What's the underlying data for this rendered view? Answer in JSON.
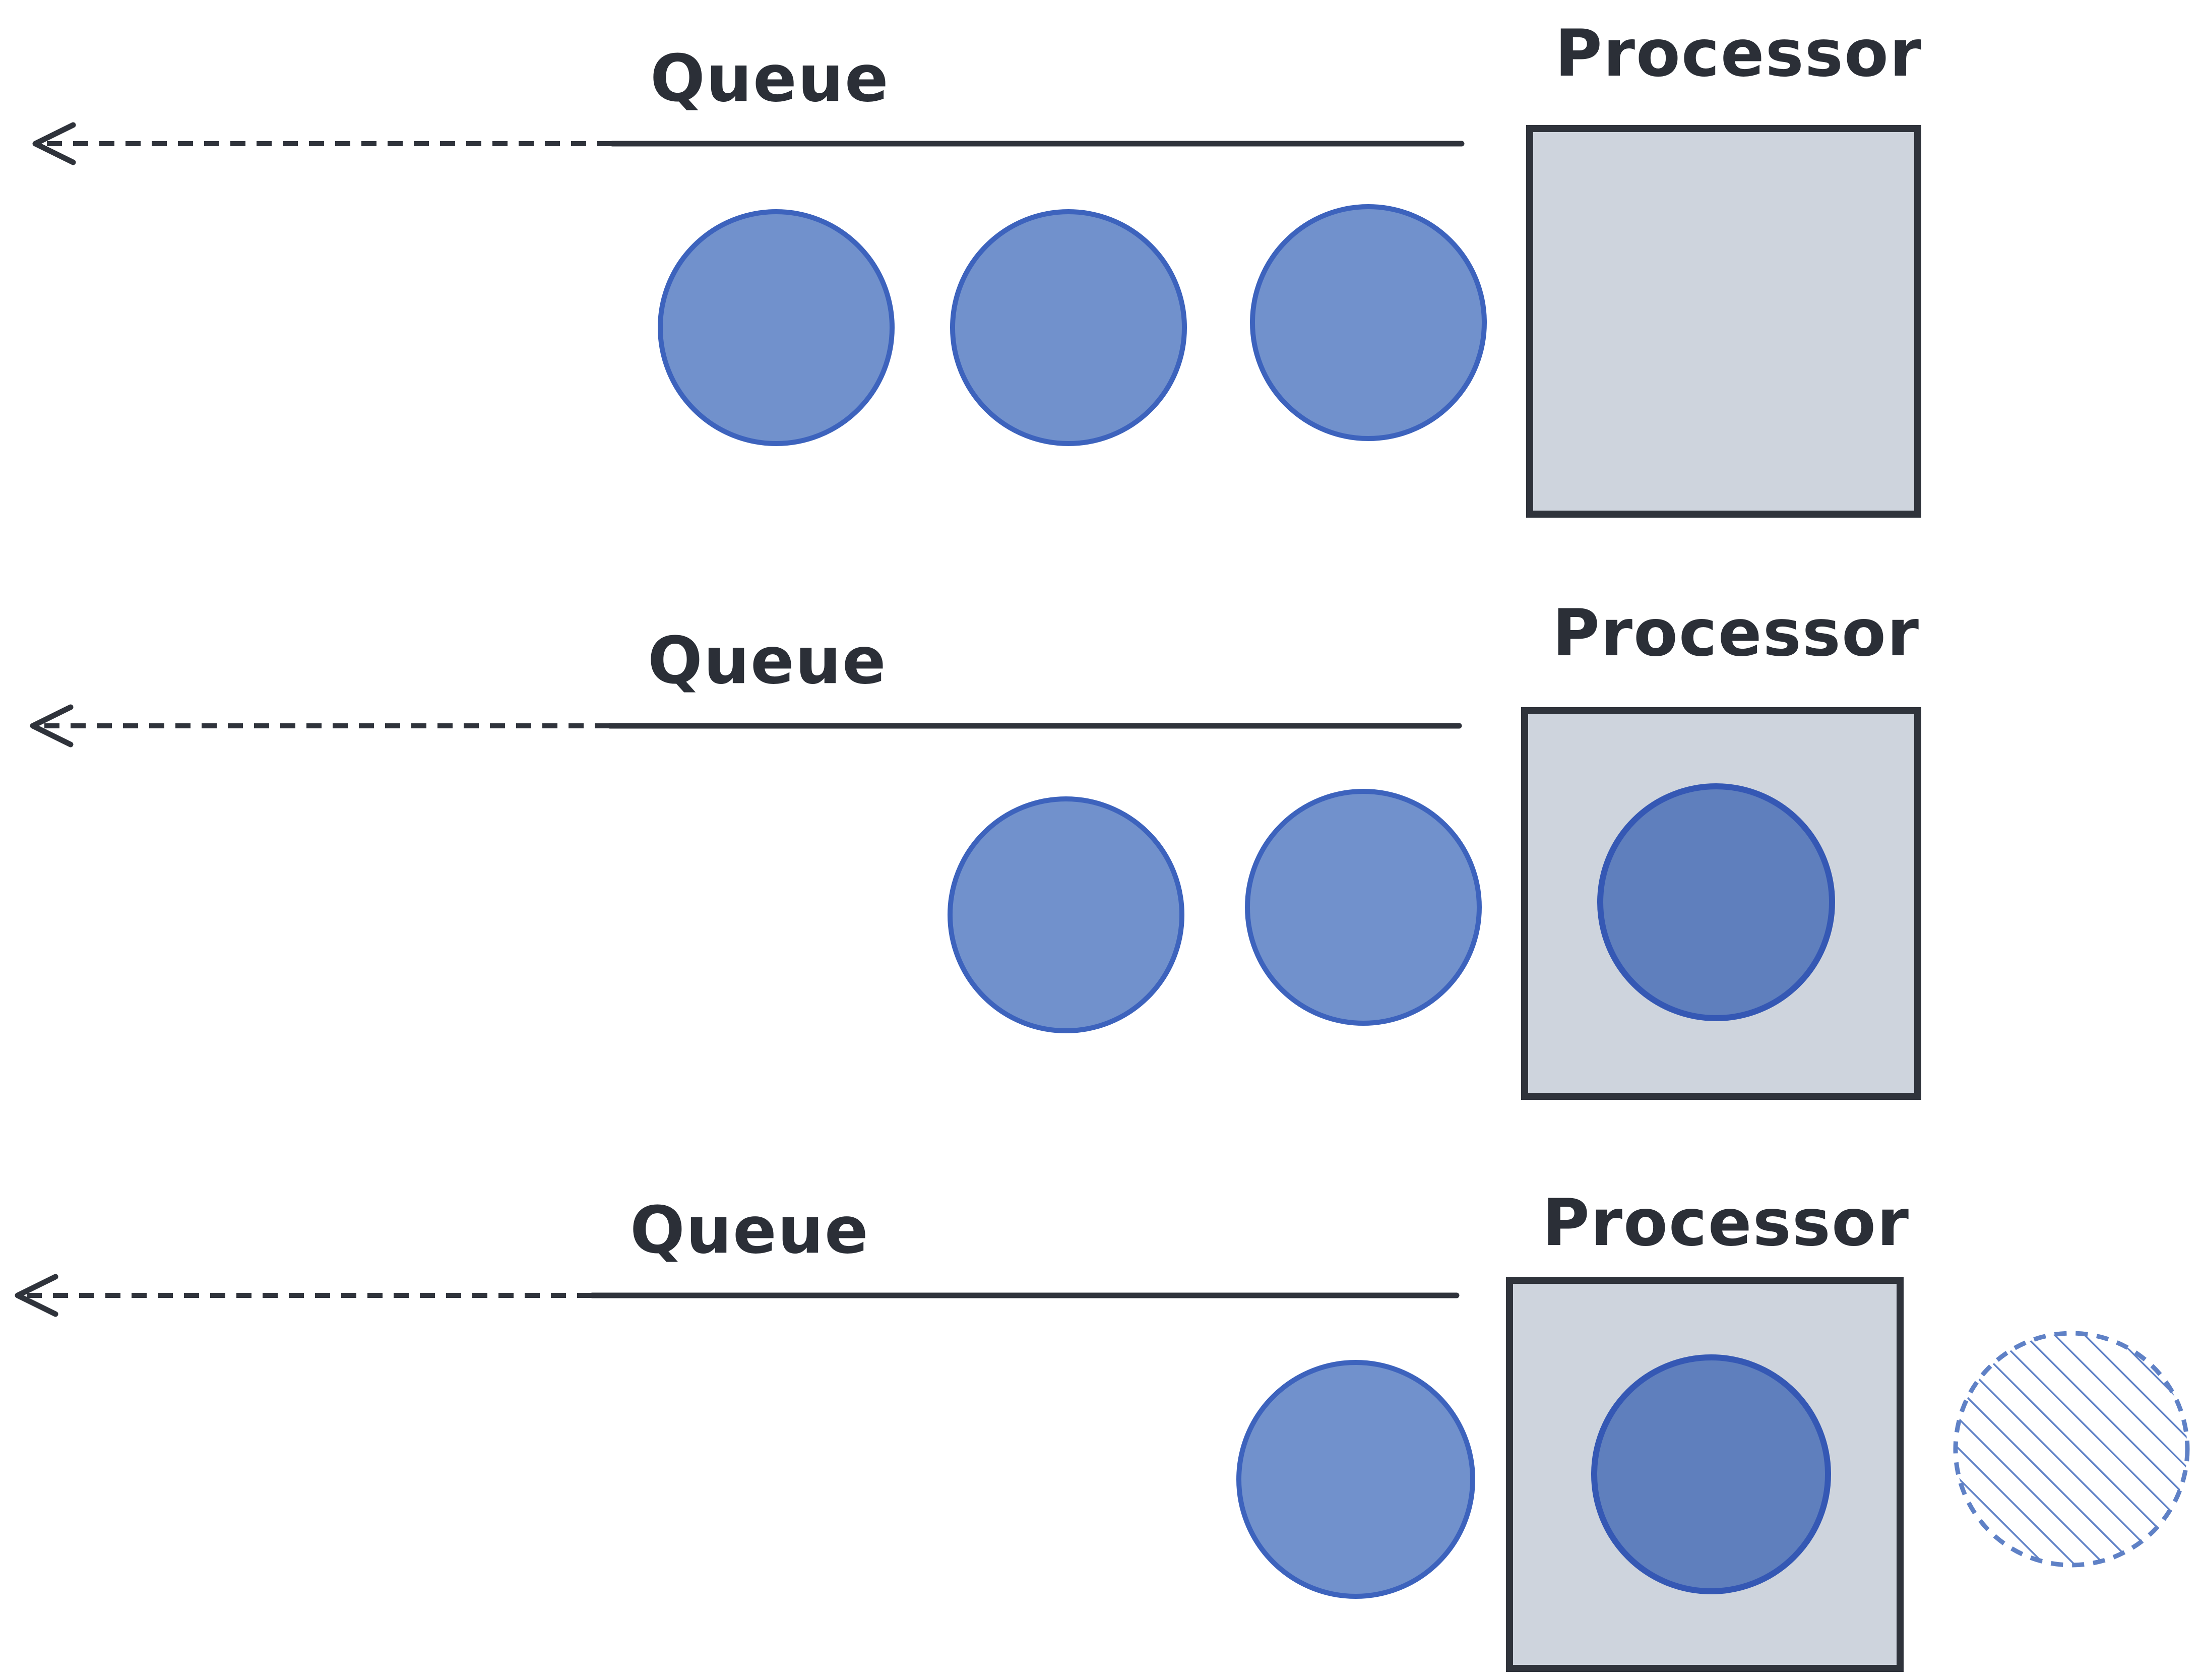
{
  "colors": {
    "ink": "#2f333b",
    "processor_fill": "#ced4dd",
    "queued_fill": "#7191cc",
    "queued_stroke": "#3d63bd",
    "processing_fill": "#5f7fbd",
    "processing_stroke": "#3558b4",
    "done_stroke": "#5f81c6"
  },
  "rows": [
    {
      "queue_label": "Queue",
      "processor_label": "Processor",
      "queued_items": 3,
      "processing_items": 0,
      "completed_items": 0
    },
    {
      "queue_label": "Queue",
      "processor_label": "Processor",
      "queued_items": 2,
      "processing_items": 1,
      "completed_items": 0
    },
    {
      "queue_label": "Queue",
      "processor_label": "Processor",
      "queued_items": 1,
      "processing_items": 1,
      "completed_items": 1
    }
  ]
}
